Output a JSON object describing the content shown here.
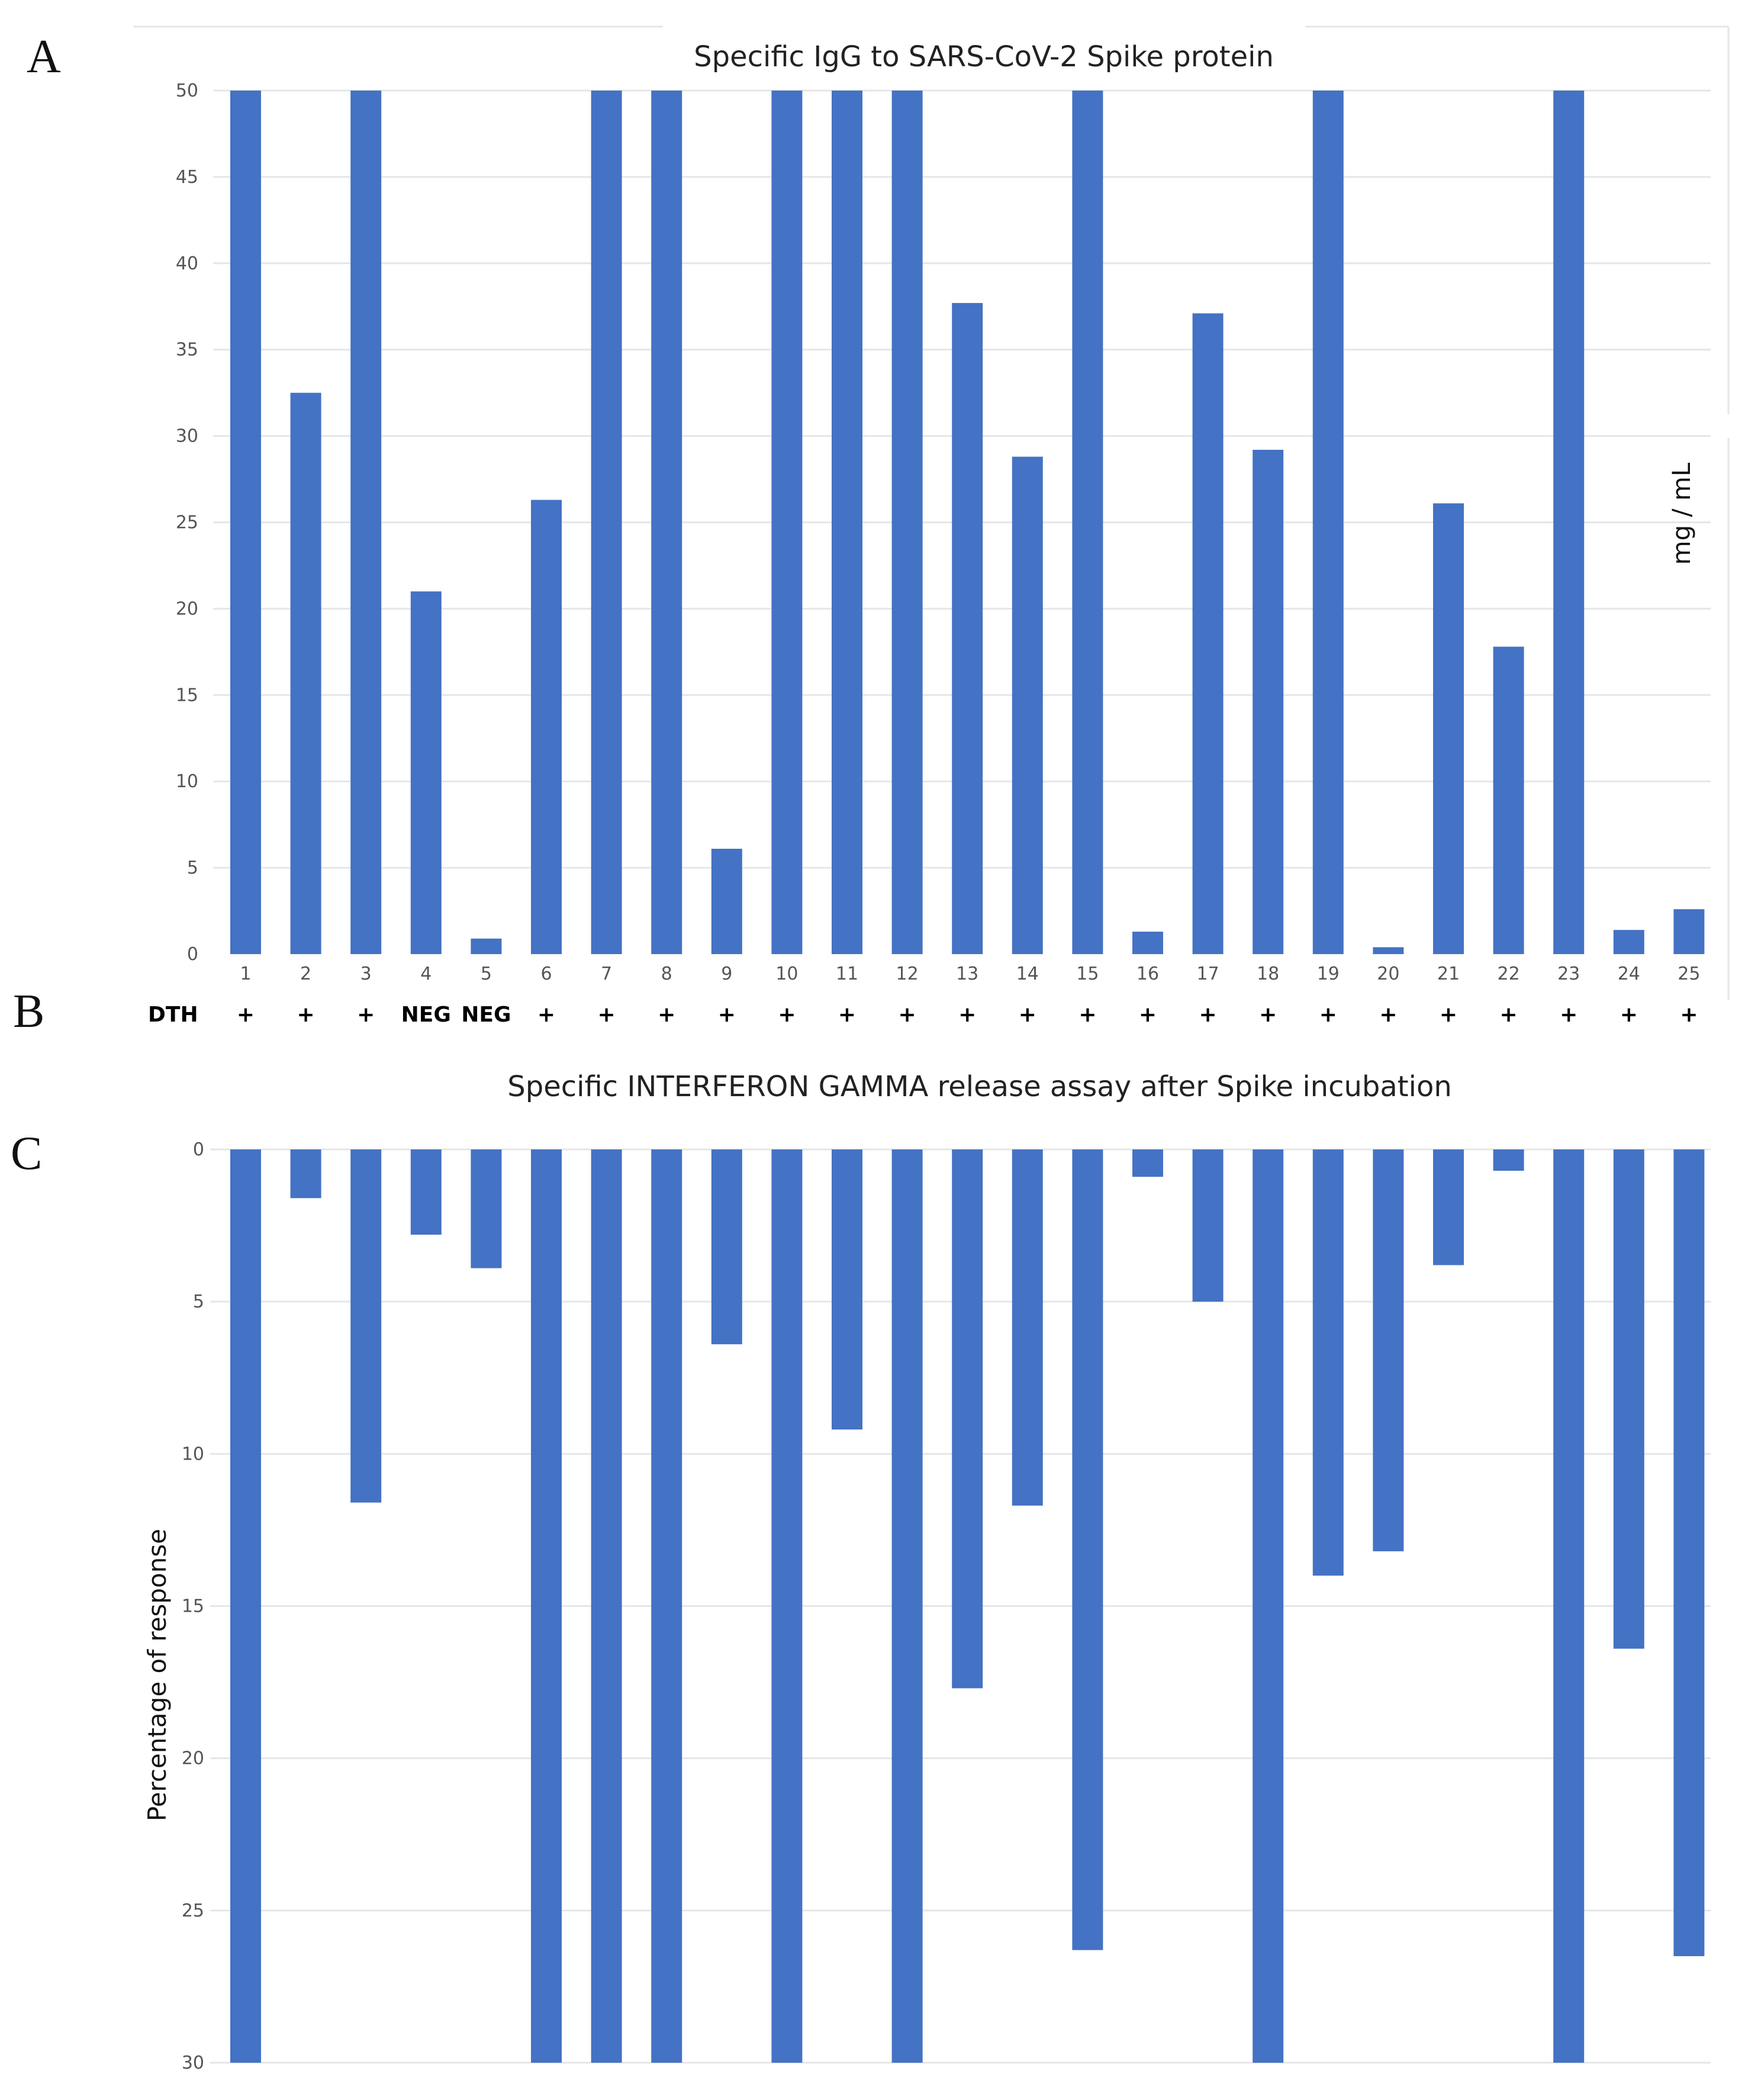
{
  "panel_labels": [
    "A",
    "B",
    "C"
  ],
  "dth": {
    "label": "DTH",
    "values": [
      "+",
      "+",
      "+",
      "NEG",
      "NEG",
      "+",
      "+",
      "+",
      "+",
      "+",
      "+",
      "+",
      "+",
      "+",
      "+",
      "+",
      "+",
      "+",
      "+",
      "+",
      "+",
      "+",
      "+",
      "+",
      "+"
    ]
  },
  "colors": {
    "bar": "#4472c4",
    "grid": "#e6e6e6"
  },
  "chart_data": [
    {
      "type": "bar",
      "title": "Specific IgG to SARS-CoV-2 Spike protein",
      "categories": [
        "1",
        "2",
        "3",
        "4",
        "5",
        "6",
        "7",
        "8",
        "9",
        "10",
        "11",
        "12",
        "13",
        "14",
        "15",
        "16",
        "17",
        "18",
        "19",
        "20",
        "21",
        "22",
        "23",
        "24",
        "25"
      ],
      "values": [
        50,
        32.5,
        50,
        21,
        0.9,
        26.3,
        50,
        50,
        6.1,
        50,
        50,
        50,
        37.7,
        28.8,
        50,
        1.3,
        37.1,
        29.2,
        50,
        0.4,
        26.1,
        17.8,
        50,
        1.4,
        2.6
      ],
      "ylabel": "mg / mL",
      "ylim": [
        0,
        50
      ],
      "yticks": [
        "0",
        "5",
        "10",
        "15",
        "20",
        "25",
        "30",
        "35",
        "40",
        "45",
        "50"
      ],
      "grid": true,
      "legend": "none"
    },
    {
      "type": "bar",
      "title": "Specific INTERFERON GAMMA release assay after Spike incubation",
      "values": [
        30,
        1.6,
        11.6,
        2.8,
        3.9,
        30,
        30,
        30,
        6.4,
        30,
        9.2,
        30,
        17.7,
        11.7,
        26.3,
        0.9,
        5,
        30,
        14,
        13.2,
        3.8,
        0.7,
        30,
        16.4,
        26.5
      ],
      "ylabel": "Percentage  of response",
      "ylim": [
        0,
        30
      ],
      "y_axis_inverted": true,
      "yticks": [
        "0",
        "5",
        "10",
        "15",
        "20",
        "25",
        "30"
      ],
      "grid": true,
      "legend": "none"
    }
  ]
}
